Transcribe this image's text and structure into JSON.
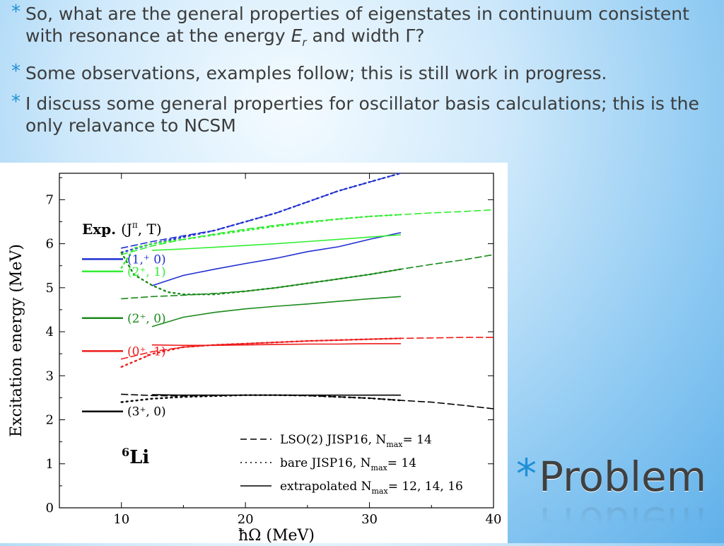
{
  "slide": {
    "bullets": [
      {
        "pre": "So, what are the general properties of eigenstates in continuum consistent with resonance at the energy ",
        "E": "E",
        "sub": "r",
        "post": " and width Γ?"
      },
      {
        "text": "Some observations, examples follow; this is still work in progress."
      },
      {
        "text": "I discuss some general properties for oscillator basis calculations; this is the only relavance to NCSM"
      }
    ],
    "bullet_symbol": "*",
    "title": "Problem",
    "accent_color": "#1f8fd6"
  },
  "chart_data": {
    "type": "line",
    "xlabel": "ħΩ (MeV)",
    "ylabel": "Excitation energy (MeV)",
    "xlim": [
      5,
      40
    ],
    "ylim": [
      0,
      7.6
    ],
    "xticks": [
      10,
      20,
      30,
      40
    ],
    "yticks": [
      0,
      1,
      2,
      3,
      4,
      5,
      6,
      7
    ],
    "nucleus": {
      "mass": "6",
      "symbol": "Li"
    },
    "exp_label": {
      "main": "Exp. (J",
      "sup": "π",
      "post": ", T)"
    },
    "exp_levels": [
      {
        "label": "(1,⁺ 0)",
        "energy": 5.65,
        "color": "#1f2fd0"
      },
      {
        "label": "(2⁺, 1)",
        "energy": 5.37,
        "color": "#33ee33"
      },
      {
        "label": "(2⁺, 0)",
        "energy": 4.31,
        "color": "#1b8a1b"
      },
      {
        "label": "(0⁺, 1)",
        "energy": 3.56,
        "color": "#ee1b1b"
      },
      {
        "label": "(3⁺, 0)",
        "energy": 2.19,
        "color": "#000000"
      }
    ],
    "legend": [
      {
        "label": "LSO(2) JISP16, N",
        "sub": "max",
        "post": "= 14",
        "style": "dashed"
      },
      {
        "label": "bare JISP16, N",
        "sub": "max",
        "post": "= 14",
        "style": "dotted"
      },
      {
        "label": "extrapolated N",
        "sub": "max",
        "post": "= 12, 14, 16",
        "style": "solid"
      }
    ],
    "legend_placement": "bottom-right",
    "series": [
      {
        "color": "#1f2fd0",
        "style": "dashed",
        "x": [
          10,
          12.5,
          15,
          17.5,
          20,
          22.5,
          25,
          27.5,
          30,
          32.5
        ],
        "y": [
          5.9,
          6.05,
          6.18,
          6.3,
          6.5,
          6.7,
          6.95,
          7.2,
          7.4,
          7.6
        ]
      },
      {
        "color": "#1f2fd0",
        "style": "dotted",
        "x": [
          10,
          12.5,
          15,
          17.5,
          20,
          22.5,
          25,
          27.5,
          30,
          32.5
        ],
        "y": [
          5.8,
          6.0,
          6.15,
          6.3,
          6.5,
          6.7,
          6.95,
          7.2,
          7.4,
          7.6
        ]
      },
      {
        "color": "#1f2fd0",
        "style": "solid",
        "x": [
          12.5,
          15,
          17.5,
          20,
          22.5,
          25,
          27.5,
          30,
          32.5
        ],
        "y": [
          5.05,
          5.28,
          5.42,
          5.55,
          5.67,
          5.82,
          5.93,
          6.1,
          6.25
        ]
      },
      {
        "color": "#33ee33",
        "style": "dashed",
        "x": [
          10,
          12.5,
          15,
          17.5,
          20,
          22.5,
          25,
          27.5,
          30,
          32.5,
          35,
          37.5,
          40
        ],
        "y": [
          5.75,
          5.95,
          6.1,
          6.22,
          6.33,
          6.42,
          6.5,
          6.56,
          6.62,
          6.66,
          6.7,
          6.73,
          6.77
        ]
      },
      {
        "color": "#33ee33",
        "style": "dotted",
        "x": [
          10,
          11,
          12.5,
          15,
          17.5,
          20,
          22.5,
          25,
          27.5,
          30,
          32.5
        ],
        "y": [
          5.45,
          5.9,
          6.0,
          6.1,
          6.2,
          6.3,
          6.4,
          6.48,
          6.56,
          6.62,
          6.66
        ]
      },
      {
        "color": "#33ee33",
        "style": "solid",
        "x": [
          12.5,
          15,
          17.5,
          20,
          22.5,
          25,
          27.5,
          30,
          32.5
        ],
        "y": [
          5.85,
          5.88,
          5.92,
          5.96,
          6.0,
          6.05,
          6.1,
          6.15,
          6.2
        ]
      },
      {
        "color": "#1b8a1b",
        "style": "dashed",
        "x": [
          10,
          12.5,
          15,
          17.5,
          20,
          22.5,
          25,
          27.5,
          30,
          32.5,
          35,
          37.5,
          40
        ],
        "y": [
          4.75,
          4.8,
          4.83,
          4.87,
          4.92,
          5.0,
          5.1,
          5.2,
          5.3,
          5.42,
          5.53,
          5.63,
          5.75
        ]
      },
      {
        "color": "#1b8a1b",
        "style": "dotted",
        "x": [
          10,
          11,
          12.5,
          13.75,
          15,
          17.5,
          20,
          22.5,
          25,
          27.5,
          30,
          32.5
        ],
        "y": [
          5.8,
          5.3,
          5.05,
          4.9,
          4.85,
          4.85,
          4.92,
          5.0,
          5.1,
          5.2,
          5.3,
          5.42
        ]
      },
      {
        "color": "#1b8a1b",
        "style": "solid",
        "x": [
          12.5,
          15,
          17.5,
          20,
          22.5,
          25,
          27.5,
          30,
          32.5
        ],
        "y": [
          4.12,
          4.33,
          4.44,
          4.52,
          4.58,
          4.63,
          4.69,
          4.75,
          4.8
        ]
      },
      {
        "color": "#ee1b1b",
        "style": "dashed",
        "x": [
          10,
          12.5,
          15,
          17.5,
          20,
          22.5,
          25,
          27.5,
          30,
          32.5,
          35,
          37.5,
          40
        ],
        "y": [
          3.38,
          3.55,
          3.65,
          3.7,
          3.73,
          3.76,
          3.79,
          3.81,
          3.83,
          3.85,
          3.86,
          3.87,
          3.87
        ]
      },
      {
        "color": "#ee1b1b",
        "style": "dotted",
        "x": [
          10,
          12.5,
          15,
          17.5,
          20,
          22.5,
          25,
          27.5,
          30,
          32.5
        ],
        "y": [
          3.2,
          3.5,
          3.65,
          3.7,
          3.73,
          3.76,
          3.79,
          3.81,
          3.83,
          3.85
        ]
      },
      {
        "color": "#ee1b1b",
        "style": "solid",
        "x": [
          12.5,
          15,
          17.5,
          20,
          22.5,
          25,
          27.5,
          30,
          32.5
        ],
        "y": [
          3.7,
          3.69,
          3.69,
          3.7,
          3.71,
          3.72,
          3.72,
          3.73,
          3.73
        ]
      },
      {
        "color": "#000000",
        "style": "dashed",
        "x": [
          10,
          12.5,
          15,
          17.5,
          20,
          22.5,
          25,
          27.5,
          30,
          32.5,
          35,
          37.5,
          40
        ],
        "y": [
          2.58,
          2.55,
          2.54,
          2.55,
          2.56,
          2.56,
          2.55,
          2.52,
          2.49,
          2.44,
          2.4,
          2.33,
          2.25
        ]
      },
      {
        "color": "#000000",
        "style": "dotted",
        "x": [
          10,
          12.5,
          15,
          17.5,
          20,
          22.5,
          25,
          27.5,
          30,
          32.5
        ],
        "y": [
          2.4,
          2.48,
          2.52,
          2.54,
          2.56,
          2.56,
          2.55,
          2.52,
          2.49,
          2.44
        ]
      },
      {
        "color": "#000000",
        "style": "solid",
        "x": [
          12.5,
          15,
          17.5,
          20,
          22.5,
          25,
          27.5,
          30,
          32.5
        ],
        "y": [
          2.57,
          2.56,
          2.56,
          2.56,
          2.56,
          2.56,
          2.56,
          2.56,
          2.56
        ]
      }
    ]
  }
}
